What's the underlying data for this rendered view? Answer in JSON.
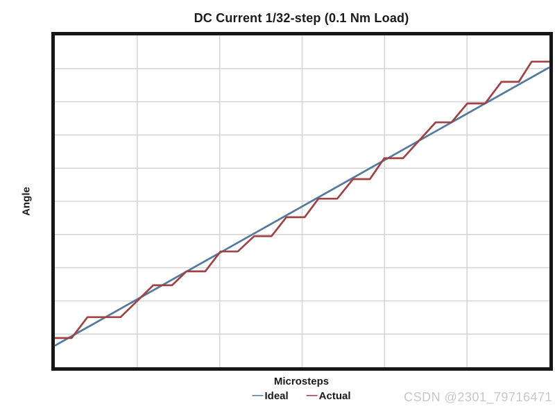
{
  "watermark": {
    "text": "CSDN @2301_79716471",
    "color": "#c7c7cb"
  },
  "chart_data": {
    "type": "line",
    "title": "DC Current 1/32-step (0.1 Nm Load)",
    "xlabel": "Microsteps",
    "ylabel": "Angle",
    "x_axis": {
      "min": 0,
      "max": 1,
      "divisions": 6,
      "tick_labels_visible": false
    },
    "y_axis": {
      "min": 0,
      "max": 1,
      "divisions": 10,
      "tick_labels_visible": false
    },
    "grid": true,
    "grid_color": "#d6d6d6",
    "border_color": "#161616",
    "legend_position": "bottom",
    "series": [
      {
        "name": "Ideal",
        "color": "#54799e",
        "points": [
          [
            0.0,
            0.065
          ],
          [
            1.0,
            0.904
          ]
        ]
      },
      {
        "name": "Actual",
        "color": "#9e4245",
        "points": [
          [
            0.0,
            0.088
          ],
          [
            0.034,
            0.088
          ],
          [
            0.066,
            0.151
          ],
          [
            0.133,
            0.151
          ],
          [
            0.199,
            0.247
          ],
          [
            0.237,
            0.247
          ],
          [
            0.266,
            0.289
          ],
          [
            0.304,
            0.289
          ],
          [
            0.335,
            0.349
          ],
          [
            0.37,
            0.349
          ],
          [
            0.403,
            0.395
          ],
          [
            0.438,
            0.395
          ],
          [
            0.468,
            0.452
          ],
          [
            0.505,
            0.452
          ],
          [
            0.533,
            0.508
          ],
          [
            0.571,
            0.508
          ],
          [
            0.603,
            0.567
          ],
          [
            0.637,
            0.567
          ],
          [
            0.666,
            0.63
          ],
          [
            0.704,
            0.63
          ],
          [
            0.77,
            0.738
          ],
          [
            0.802,
            0.738
          ],
          [
            0.834,
            0.795
          ],
          [
            0.87,
            0.795
          ],
          [
            0.903,
            0.86
          ],
          [
            0.938,
            0.86
          ],
          [
            0.964,
            0.921
          ],
          [
            1.0,
            0.921
          ]
        ]
      }
    ]
  }
}
